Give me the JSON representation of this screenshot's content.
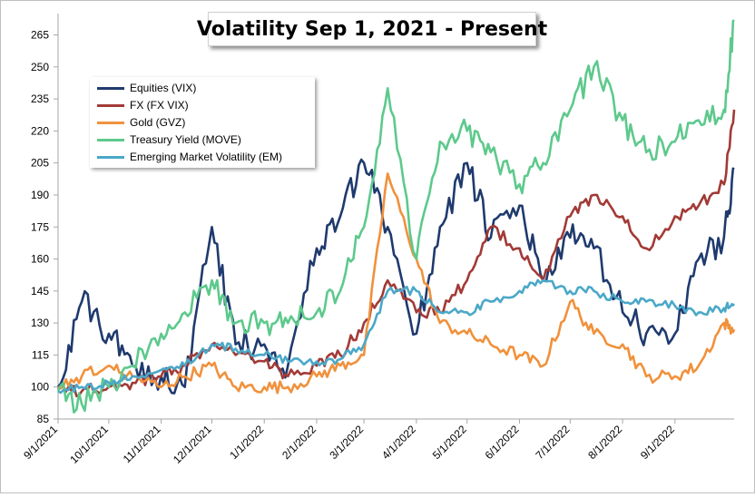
{
  "chart_data": {
    "type": "line",
    "title": "Volatility Sep 1, 2021 - Present",
    "xlabel": "",
    "ylabel": "",
    "ylim": [
      85,
      275
    ],
    "yticks": [
      85,
      100,
      115,
      130,
      145,
      160,
      175,
      190,
      205,
      220,
      235,
      250,
      265
    ],
    "xticks": [
      "9/1/2021",
      "10/1/2021",
      "11/1/2021",
      "12/1/2021",
      "1/1/2022",
      "2/1/2022",
      "3/1/2022",
      "4/1/2022",
      "5/1/2022",
      "6/1/2022",
      "7/1/2022",
      "8/1/2022",
      "9/1/2022"
    ],
    "x": [
      "9/1/2021",
      "9/15/2021",
      "10/1/2021",
      "10/15/2021",
      "11/1/2021",
      "11/15/2021",
      "12/1/2021",
      "12/15/2021",
      "1/1/2022",
      "1/15/2022",
      "2/1/2022",
      "2/15/2022",
      "3/1/2022",
      "3/15/2022",
      "4/1/2022",
      "4/15/2022",
      "5/1/2022",
      "5/15/2022",
      "6/1/2022",
      "6/15/2022",
      "7/1/2022",
      "7/15/2022",
      "8/1/2022",
      "8/15/2022",
      "9/1/2022",
      "9/15/2022",
      "9/30/2022",
      "10/6/2022"
    ],
    "grid": false,
    "legend_position": "top-left",
    "series": [
      {
        "name": "Equities (VIX)",
        "color": "#1f3a6e",
        "values": [
          100,
          140,
          125,
          110,
          105,
          100,
          175,
          120,
          120,
          110,
          165,
          180,
          205,
          175,
          125,
          175,
          205,
          170,
          185,
          150,
          170,
          165,
          135,
          125,
          125,
          160,
          170,
          202
        ]
      },
      {
        "name": "FX (FX VIX)",
        "color": "#a23a36",
        "values": [
          99,
          98,
          100,
          102,
          105,
          110,
          120,
          115,
          112,
          105,
          110,
          115,
          130,
          150,
          135,
          135,
          150,
          175,
          165,
          150,
          180,
          190,
          180,
          165,
          180,
          185,
          195,
          230
        ]
      },
      {
        "name": "Gold (GVZ)",
        "color": "#f0913c",
        "values": [
          100,
          105,
          110,
          105,
          100,
          105,
          110,
          100,
          100,
          100,
          105,
          110,
          115,
          200,
          160,
          130,
          125,
          120,
          115,
          110,
          140,
          125,
          120,
          105,
          105,
          110,
          130,
          127
        ]
      },
      {
        "name": "Treasury Yield (MOVE)",
        "color": "#5dc98c",
        "values": [
          98,
          92,
          100,
          110,
          125,
          135,
          150,
          130,
          130,
          130,
          135,
          145,
          175,
          240,
          160,
          215,
          220,
          210,
          195,
          205,
          230,
          250,
          225,
          210,
          215,
          225,
          230,
          272
        ]
      },
      {
        "name": "Emerging Market Volatility (EM)",
        "color": "#4ba8c8",
        "values": [
          98,
          100,
          102,
          105,
          108,
          110,
          120,
          118,
          115,
          112,
          112,
          113,
          120,
          145,
          145,
          135,
          135,
          140,
          145,
          150,
          145,
          145,
          140,
          140,
          138,
          135,
          137,
          139
        ]
      }
    ]
  }
}
